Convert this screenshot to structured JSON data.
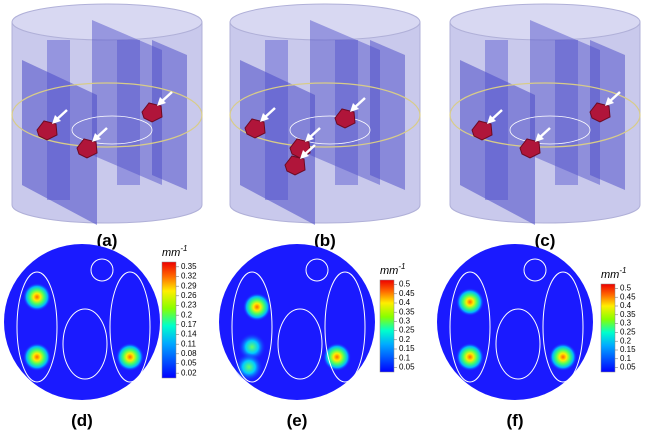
{
  "panels": [
    {
      "label": "(a)"
    },
    {
      "label": "(b)"
    },
    {
      "label": "(c)"
    },
    {
      "label": "(d)",
      "colorbar": {
        "unit": {
          "base": "mm",
          "exponent": "-1"
        },
        "ticks": [
          0.35,
          0.32,
          0.29,
          0.26,
          0.23,
          0.2,
          0.17,
          0.14,
          0.11,
          0.08,
          0.05,
          0.02
        ]
      }
    },
    {
      "label": "(e)",
      "colorbar": {
        "unit": {
          "base": "mm",
          "exponent": "-1"
        },
        "ticks": [
          0.5,
          0.45,
          0.4,
          0.35,
          0.3,
          0.25,
          0.2,
          0.15,
          0.1,
          0.05
        ]
      }
    },
    {
      "label": "(f)",
      "colorbar": {
        "unit": {
          "base": "mm",
          "exponent": "-1"
        },
        "ticks": [
          0.5,
          0.45,
          0.4,
          0.35,
          0.3,
          0.25,
          0.2,
          0.15,
          0.1,
          0.05
        ]
      }
    }
  ]
}
